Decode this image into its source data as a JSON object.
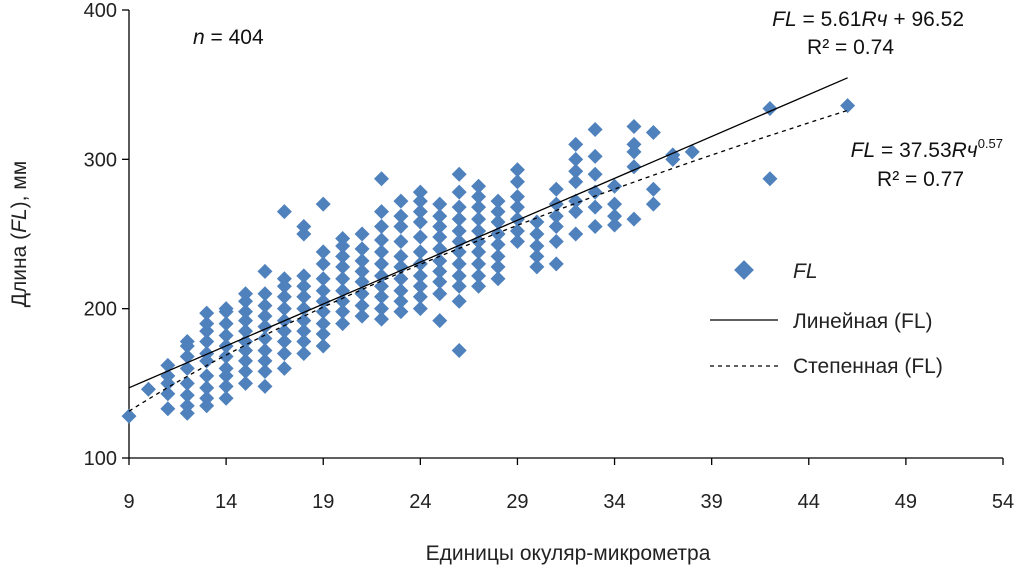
{
  "chart_data": {
    "type": "scatter",
    "xlabel": "Единицы окуляр-микрометра",
    "ylabel": {
      "before": "Длина (",
      "italic": "FL",
      "after": "), мм"
    },
    "xlim": [
      9,
      54
    ],
    "ylim": [
      100,
      400
    ],
    "xticks": [
      9,
      14,
      19,
      24,
      29,
      34,
      39,
      44,
      49,
      54
    ],
    "yticks": [
      100,
      200,
      300,
      400
    ],
    "grid": false,
    "legend_position": "right",
    "legend": [
      {
        "label": "FL",
        "kind": "marker",
        "italic": true
      },
      {
        "label": "Линейная (FL)",
        "kind": "solid-line"
      },
      {
        "label": "Степенная (FL)",
        "kind": "dashed-line"
      }
    ],
    "annotations": {
      "n": {
        "var": "n",
        "rest": " = 404"
      },
      "linear_eq": {
        "lhs": "FL",
        "eq": " = 5.61",
        "var": "Rч",
        "rest": " + 96.52"
      },
      "linear_r2": "R² = 0.74",
      "power_eq": {
        "lhs": "FL",
        "eq": " = 37.53",
        "var": "Rч",
        "exp": "0.57"
      },
      "power_r2": "R² = 0.77"
    },
    "trendlines": {
      "linear": {
        "slope": 5.61,
        "intercept": 96.52,
        "x_range": [
          9,
          46
        ]
      },
      "power": {
        "coef": 37.53,
        "exponent": 0.57,
        "x_range": [
          9,
          46
        ]
      }
    },
    "marker_color": "#4F81BD",
    "series": [
      {
        "name": "FL",
        "points": [
          [
            9,
            128
          ],
          [
            10,
            146
          ],
          [
            11,
            133
          ],
          [
            11,
            143
          ],
          [
            11,
            150
          ],
          [
            11,
            155
          ],
          [
            11,
            162
          ],
          [
            12,
            130
          ],
          [
            12,
            135
          ],
          [
            12,
            142
          ],
          [
            12,
            150
          ],
          [
            12,
            160
          ],
          [
            12,
            168
          ],
          [
            12,
            175
          ],
          [
            12,
            178
          ],
          [
            13,
            135
          ],
          [
            13,
            140
          ],
          [
            13,
            147
          ],
          [
            13,
            155
          ],
          [
            13,
            165
          ],
          [
            13,
            170
          ],
          [
            13,
            178
          ],
          [
            13,
            185
          ],
          [
            13,
            190
          ],
          [
            13,
            197
          ],
          [
            14,
            140
          ],
          [
            14,
            148
          ],
          [
            14,
            155
          ],
          [
            14,
            160
          ],
          [
            14,
            168
          ],
          [
            14,
            175
          ],
          [
            14,
            182
          ],
          [
            14,
            190
          ],
          [
            14,
            198
          ],
          [
            14,
            200
          ],
          [
            15,
            150
          ],
          [
            15,
            158
          ],
          [
            15,
            165
          ],
          [
            15,
            172
          ],
          [
            15,
            178
          ],
          [
            15,
            185
          ],
          [
            15,
            192
          ],
          [
            15,
            198
          ],
          [
            15,
            205
          ],
          [
            15,
            210
          ],
          [
            16,
            148
          ],
          [
            16,
            158
          ],
          [
            16,
            165
          ],
          [
            16,
            172
          ],
          [
            16,
            180
          ],
          [
            16,
            188
          ],
          [
            16,
            195
          ],
          [
            16,
            202
          ],
          [
            16,
            210
          ],
          [
            16,
            225
          ],
          [
            17,
            160
          ],
          [
            17,
            170
          ],
          [
            17,
            178
          ],
          [
            17,
            185
          ],
          [
            17,
            192
          ],
          [
            17,
            200
          ],
          [
            17,
            208
          ],
          [
            17,
            215
          ],
          [
            17,
            220
          ],
          [
            17,
            265
          ],
          [
            18,
            170
          ],
          [
            18,
            178
          ],
          [
            18,
            185
          ],
          [
            18,
            192
          ],
          [
            18,
            200
          ],
          [
            18,
            208
          ],
          [
            18,
            215
          ],
          [
            18,
            222
          ],
          [
            18,
            250
          ],
          [
            18,
            255
          ],
          [
            19,
            175
          ],
          [
            19,
            183
          ],
          [
            19,
            190
          ],
          [
            19,
            198
          ],
          [
            19,
            205
          ],
          [
            19,
            212
          ],
          [
            19,
            220
          ],
          [
            19,
            230
          ],
          [
            19,
            238
          ],
          [
            19,
            270
          ],
          [
            20,
            190
          ],
          [
            20,
            198
          ],
          [
            20,
            205
          ],
          [
            20,
            212
          ],
          [
            20,
            220
          ],
          [
            20,
            228
          ],
          [
            20,
            235
          ],
          [
            20,
            242
          ],
          [
            20,
            247
          ],
          [
            21,
            195
          ],
          [
            21,
            202
          ],
          [
            21,
            210
          ],
          [
            21,
            218
          ],
          [
            21,
            225
          ],
          [
            21,
            232
          ],
          [
            21,
            240
          ],
          [
            21,
            250
          ],
          [
            22,
            193
          ],
          [
            22,
            200
          ],
          [
            22,
            208
          ],
          [
            22,
            215
          ],
          [
            22,
            222
          ],
          [
            22,
            230
          ],
          [
            22,
            238
          ],
          [
            22,
            246
          ],
          [
            22,
            255
          ],
          [
            22,
            265
          ],
          [
            22,
            287
          ],
          [
            23,
            198
          ],
          [
            23,
            205
          ],
          [
            23,
            212
          ],
          [
            23,
            220
          ],
          [
            23,
            228
          ],
          [
            23,
            235
          ],
          [
            23,
            245
          ],
          [
            23,
            255
          ],
          [
            23,
            262
          ],
          [
            23,
            272
          ],
          [
            24,
            200
          ],
          [
            24,
            208
          ],
          [
            24,
            215
          ],
          [
            24,
            222
          ],
          [
            24,
            230
          ],
          [
            24,
            238
          ],
          [
            24,
            248
          ],
          [
            24,
            258
          ],
          [
            24,
            265
          ],
          [
            24,
            272
          ],
          [
            24,
            278
          ],
          [
            25,
            192
          ],
          [
            25,
            210
          ],
          [
            25,
            218
          ],
          [
            25,
            225
          ],
          [
            25,
            232
          ],
          [
            25,
            240
          ],
          [
            25,
            248
          ],
          [
            25,
            255
          ],
          [
            25,
            262
          ],
          [
            25,
            270
          ],
          [
            26,
            172
          ],
          [
            26,
            205
          ],
          [
            26,
            215
          ],
          [
            26,
            222
          ],
          [
            26,
            230
          ],
          [
            26,
            238
          ],
          [
            26,
            245
          ],
          [
            26,
            252
          ],
          [
            26,
            260
          ],
          [
            26,
            268
          ],
          [
            26,
            278
          ],
          [
            26,
            290
          ],
          [
            27,
            215
          ],
          [
            27,
            222
          ],
          [
            27,
            230
          ],
          [
            27,
            238
          ],
          [
            27,
            245
          ],
          [
            27,
            252
          ],
          [
            27,
            260
          ],
          [
            27,
            268
          ],
          [
            27,
            275
          ],
          [
            27,
            282
          ],
          [
            28,
            220
          ],
          [
            28,
            228
          ],
          [
            28,
            235
          ],
          [
            28,
            243
          ],
          [
            28,
            250
          ],
          [
            28,
            258
          ],
          [
            28,
            265
          ],
          [
            28,
            272
          ],
          [
            29,
            245
          ],
          [
            29,
            252
          ],
          [
            29,
            260
          ],
          [
            29,
            268
          ],
          [
            29,
            275
          ],
          [
            29,
            285
          ],
          [
            29,
            293
          ],
          [
            30,
            228
          ],
          [
            30,
            235
          ],
          [
            30,
            242
          ],
          [
            30,
            250
          ],
          [
            30,
            258
          ],
          [
            31,
            230
          ],
          [
            31,
            245
          ],
          [
            31,
            255
          ],
          [
            31,
            262
          ],
          [
            31,
            270
          ],
          [
            31,
            280
          ],
          [
            32,
            250
          ],
          [
            32,
            265
          ],
          [
            32,
            272
          ],
          [
            32,
            285
          ],
          [
            32,
            292
          ],
          [
            32,
            300
          ],
          [
            32,
            310
          ],
          [
            33,
            255
          ],
          [
            33,
            268
          ],
          [
            33,
            278
          ],
          [
            33,
            290
          ],
          [
            33,
            302
          ],
          [
            33,
            320
          ],
          [
            34,
            256
          ],
          [
            34,
            262
          ],
          [
            34,
            270
          ],
          [
            34,
            282
          ],
          [
            35,
            260
          ],
          [
            35,
            295
          ],
          [
            35,
            305
          ],
          [
            35,
            310
          ],
          [
            35,
            322
          ],
          [
            36,
            270
          ],
          [
            36,
            280
          ],
          [
            36,
            318
          ],
          [
            37,
            300
          ],
          [
            37,
            303
          ],
          [
            38,
            305
          ],
          [
            42,
            287
          ],
          [
            42,
            334
          ],
          [
            46,
            336
          ]
        ]
      }
    ]
  }
}
